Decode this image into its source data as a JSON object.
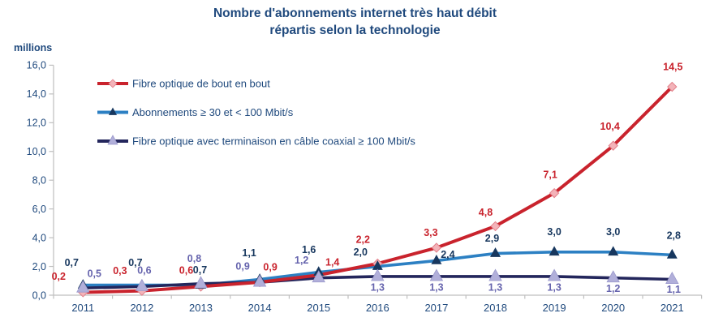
{
  "chart_data": {
    "type": "line",
    "title": "Nombre d'abonnements internet très haut débit répartis selon la technologie",
    "title_lines": [
      "Nombre d'abonnements internet très haut débit",
      "répartis selon la technologie"
    ],
    "ylabel": "millions",
    "xlabel": "",
    "x_categories": [
      "2011",
      "2012",
      "2013",
      "2014",
      "2015",
      "2016",
      "2017",
      "2018",
      "2019",
      "2020",
      "2021"
    ],
    "ylim": [
      0,
      16
    ],
    "y_tick_step": 2,
    "grid": false,
    "legend_position": "upper-left-inside",
    "colors": {
      "text": "#1F497D",
      "axis": "#BFBFBF",
      "background": "#FFFFFF"
    },
    "series": [
      {
        "id": "fibre-optique",
        "name": "Fibre optique de bout en bout",
        "values": [
          0.2,
          0.3,
          0.6,
          0.9,
          1.4,
          2.2,
          3.3,
          4.8,
          7.1,
          10.4,
          14.5
        ],
        "line_color": "#C9232D",
        "label_color": "#C9232D",
        "marker": "diamond",
        "marker_fill": "#F3B3B9",
        "marker_stroke": "#E2808A",
        "marker_size": 11,
        "label_offsets": [
          [
            -30,
            -20
          ],
          [
            -27,
            -25
          ],
          [
            -18,
            -20
          ],
          [
            13,
            -19
          ],
          [
            17,
            -16
          ],
          [
            -18,
            -30
          ],
          [
            -7,
            -19
          ],
          [
            -12,
            -17
          ],
          [
            -5,
            -23
          ],
          [
            -4,
            -24
          ],
          [
            1,
            -25
          ]
        ]
      },
      {
        "id": "abonnements-30-100",
        "name": "Abonnements ≥ 30 et < 100 Mbit/s",
        "values": [
          0.7,
          0.7,
          0.7,
          1.1,
          1.6,
          2.0,
          2.4,
          2.9,
          3.0,
          3.0,
          2.8
        ],
        "line_color": "#2C80C3",
        "label_color": "#17375E",
        "marker": "triangle",
        "marker_fill": "#17375E",
        "marker_stroke": "none",
        "marker_size": 12,
        "label_offsets": [
          [
            -14,
            -28
          ],
          [
            -8,
            -28
          ],
          [
            -1,
            -19
          ],
          [
            -13,
            -33
          ],
          [
            -12,
            -28
          ],
          [
            -21,
            -18
          ],
          [
            14,
            -8
          ],
          [
            -4,
            -19
          ],
          [
            0,
            -25
          ],
          [
            0,
            -25
          ],
          [
            2,
            -24
          ]
        ]
      },
      {
        "id": "cable-coaxial",
        "name": "Fibre optique avec terminaison en câble coaxial ≥ 100 Mbit/s",
        "values": [
          0.5,
          0.6,
          0.8,
          0.9,
          1.2,
          1.3,
          1.3,
          1.3,
          1.3,
          1.2,
          1.1
        ],
        "line_color": "#23265C",
        "label_color": "#6563AD",
        "marker": "triangle",
        "marker_fill": "#B1AFDA",
        "marker_stroke": "#9B99CC",
        "marker_size": 14,
        "label_offsets": [
          [
            14,
            -18
          ],
          [
            3,
            -20
          ],
          [
            -8,
            -31
          ],
          [
            -21,
            -20
          ],
          [
            -21,
            -22
          ],
          [
            0,
            13
          ],
          [
            0,
            13
          ],
          [
            0,
            13
          ],
          [
            0,
            13
          ],
          [
            0,
            13
          ],
          [
            2,
            12
          ]
        ]
      }
    ]
  }
}
